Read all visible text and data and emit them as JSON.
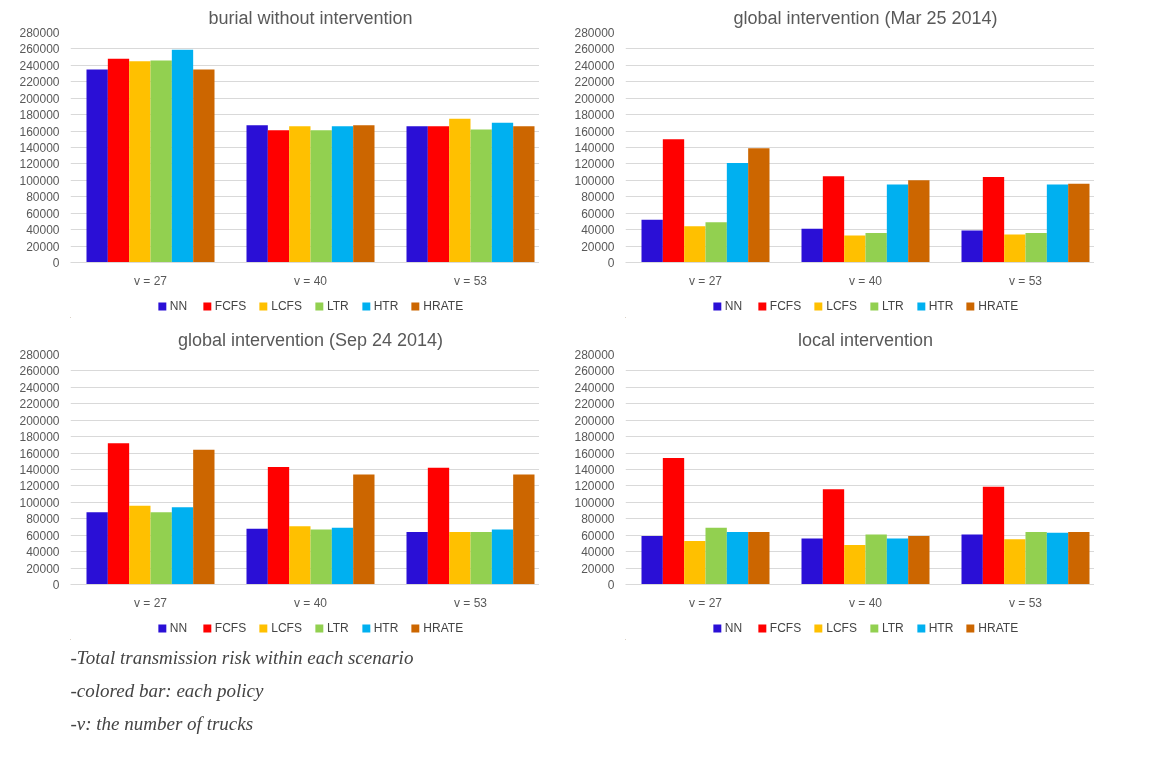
{
  "chart_data": [
    {
      "type": "bar",
      "title": "burial without intervention",
      "categories": [
        "v = 27",
        "v = 40",
        "v = 53"
      ],
      "ylim": [
        0,
        280000
      ],
      "yticks": [
        0,
        20000,
        40000,
        60000,
        80000,
        100000,
        120000,
        140000,
        160000,
        180000,
        200000,
        220000,
        240000,
        260000,
        280000
      ],
      "grid": "y",
      "legend": "bottom",
      "series": [
        {
          "name": "NN",
          "color": "#2a0fd6",
          "values": [
            235000,
            167000,
            166000
          ]
        },
        {
          "name": "FCFS",
          "color": "#ff0000",
          "values": [
            248000,
            161000,
            166000
          ]
        },
        {
          "name": "LCFS",
          "color": "#ffc000",
          "values": [
            245000,
            166000,
            175000
          ]
        },
        {
          "name": "LTR",
          "color": "#92d050",
          "values": [
            246000,
            161000,
            162000
          ]
        },
        {
          "name": "HTR",
          "color": "#00b0f0",
          "values": [
            259000,
            166000,
            170000
          ]
        },
        {
          "name": "HRATE",
          "color": "#cc6600",
          "values": [
            235000,
            167000,
            166000
          ]
        }
      ]
    },
    {
      "type": "bar",
      "title": "global intervention (Mar 25 2014)",
      "categories": [
        "v = 27",
        "v = 40",
        "v = 53"
      ],
      "ylim": [
        0,
        280000
      ],
      "yticks": [
        0,
        20000,
        40000,
        60000,
        80000,
        100000,
        120000,
        140000,
        160000,
        180000,
        200000,
        220000,
        240000,
        260000,
        280000
      ],
      "grid": "y",
      "legend": "bottom",
      "series": [
        {
          "name": "NN",
          "color": "#2a0fd6",
          "values": [
            52000,
            41000,
            39000
          ]
        },
        {
          "name": "FCFS",
          "color": "#ff0000",
          "values": [
            150000,
            105000,
            104000
          ]
        },
        {
          "name": "LCFS",
          "color": "#ffc000",
          "values": [
            44000,
            33000,
            34000
          ]
        },
        {
          "name": "LTR",
          "color": "#92d050",
          "values": [
            49000,
            36000,
            36000
          ]
        },
        {
          "name": "HTR",
          "color": "#00b0f0",
          "values": [
            121000,
            95000,
            95000
          ]
        },
        {
          "name": "HRATE",
          "color": "#cc6600",
          "values": [
            139000,
            100000,
            96000
          ]
        }
      ]
    },
    {
      "type": "bar",
      "title": "global intervention (Sep 24 2014)",
      "categories": [
        "v = 27",
        "v = 40",
        "v = 53"
      ],
      "ylim": [
        0,
        280000
      ],
      "yticks": [
        0,
        20000,
        40000,
        60000,
        80000,
        100000,
        120000,
        140000,
        160000,
        180000,
        200000,
        220000,
        240000,
        260000,
        280000
      ],
      "grid": "y",
      "legend": "bottom",
      "annotations": [
        "-Total transmission risk within each scenario",
        "-colored bar: each policy",
        "-v: the number of trucks"
      ],
      "series": [
        {
          "name": "NN",
          "color": "#2a0fd6",
          "values": [
            88000,
            68000,
            64000
          ]
        },
        {
          "name": "FCFS",
          "color": "#ff0000",
          "values": [
            172000,
            143000,
            142000
          ]
        },
        {
          "name": "LCFS",
          "color": "#ffc000",
          "values": [
            96000,
            71000,
            64000
          ]
        },
        {
          "name": "LTR",
          "color": "#92d050",
          "values": [
            88000,
            67000,
            64000
          ]
        },
        {
          "name": "HTR",
          "color": "#00b0f0",
          "values": [
            94000,
            69000,
            67000
          ]
        },
        {
          "name": "HRATE",
          "color": "#cc6600",
          "values": [
            164000,
            134000,
            134000
          ]
        }
      ]
    },
    {
      "type": "bar",
      "title": "local intervention",
      "categories": [
        "v = 27",
        "v = 40",
        "v = 53"
      ],
      "ylim": [
        0,
        280000
      ],
      "yticks": [
        0,
        20000,
        40000,
        60000,
        80000,
        100000,
        120000,
        140000,
        160000,
        180000,
        200000,
        220000,
        240000,
        260000,
        280000
      ],
      "grid": "y",
      "legend": "bottom",
      "series": [
        {
          "name": "NN",
          "color": "#2a0fd6",
          "values": [
            59000,
            56000,
            61000
          ]
        },
        {
          "name": "FCFS",
          "color": "#ff0000",
          "values": [
            154000,
            116000,
            119000
          ]
        },
        {
          "name": "LCFS",
          "color": "#ffc000",
          "values": [
            53000,
            48000,
            55000
          ]
        },
        {
          "name": "LTR",
          "color": "#92d050",
          "values": [
            69000,
            61000,
            64000
          ]
        },
        {
          "name": "HTR",
          "color": "#00b0f0",
          "values": [
            64000,
            56000,
            63000
          ]
        },
        {
          "name": "HRATE",
          "color": "#cc6600",
          "values": [
            64000,
            59000,
            64000
          ]
        }
      ]
    }
  ]
}
